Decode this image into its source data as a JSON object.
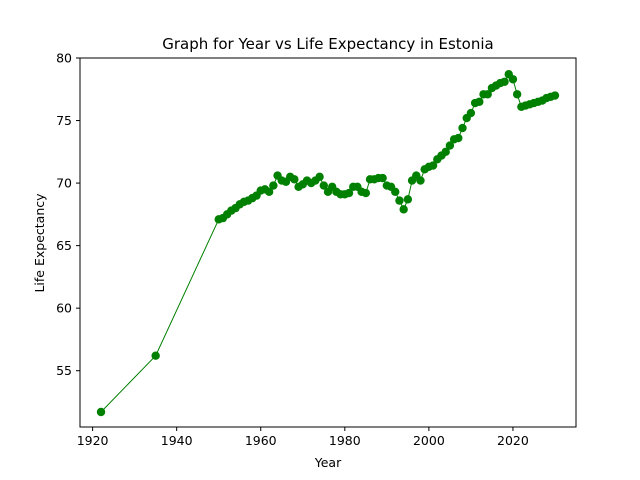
{
  "chart_data": {
    "type": "line",
    "title": "Graph for Year vs Life Expectancy in Estonia",
    "xlabel": "Year",
    "ylabel": "Life Expectancy",
    "xlim": [
      1917,
      2035
    ],
    "ylim": [
      50.5,
      80
    ],
    "x_ticks": [
      1920,
      1940,
      1960,
      1980,
      2000,
      2020
    ],
    "y_ticks": [
      55,
      60,
      65,
      70,
      75,
      80
    ],
    "grid": false,
    "legend": "none",
    "color": "#008000",
    "series": [
      {
        "x": [
          1922,
          1935,
          1950,
          1951,
          1952,
          1953,
          1954,
          1955,
          1956,
          1957,
          1958,
          1959,
          1960,
          1961,
          1962,
          1963,
          1964,
          1965,
          1966,
          1967,
          1968,
          1969,
          1970,
          1971,
          1972,
          1973,
          1974,
          1975,
          1976,
          1977,
          1978,
          1979,
          1980,
          1981,
          1982,
          1983,
          1984,
          1985,
          1986,
          1987,
          1988,
          1989,
          1990,
          1991,
          1992,
          1993,
          1994,
          1995,
          1996,
          1997,
          1998,
          1999,
          2000,
          2001,
          2002,
          2003,
          2004,
          2005,
          2006,
          2007,
          2008,
          2009,
          2010,
          2011,
          2012,
          2013,
          2014,
          2015,
          2016,
          2017,
          2018,
          2019,
          2020,
          2021,
          2022,
          2023,
          2024,
          2025,
          2026,
          2027,
          2028,
          2029,
          2030
        ],
        "values": [
          51.7,
          56.2,
          67.1,
          67.2,
          67.5,
          67.8,
          68.0,
          68.3,
          68.5,
          68.6,
          68.8,
          69.0,
          69.4,
          69.5,
          69.3,
          69.8,
          70.6,
          70.2,
          70.1,
          70.5,
          70.3,
          69.7,
          69.9,
          70.2,
          70.0,
          70.2,
          70.5,
          69.8,
          69.3,
          69.7,
          69.3,
          69.1,
          69.1,
          69.2,
          69.7,
          69.7,
          69.3,
          69.2,
          70.3,
          70.3,
          70.4,
          70.4,
          69.8,
          69.7,
          69.3,
          68.6,
          67.9,
          68.7,
          70.2,
          70.6,
          70.2,
          71.1,
          71.3,
          71.4,
          71.9,
          72.2,
          72.5,
          73.0,
          73.5,
          73.6,
          74.4,
          75.2,
          75.6,
          76.4,
          76.5,
          77.1,
          77.1,
          77.6,
          77.8,
          78.0,
          78.1,
          78.7,
          78.3,
          77.1,
          76.1,
          76.2,
          76.3,
          76.4,
          76.5,
          76.6,
          76.8,
          76.9,
          77.0
        ]
      }
    ]
  }
}
